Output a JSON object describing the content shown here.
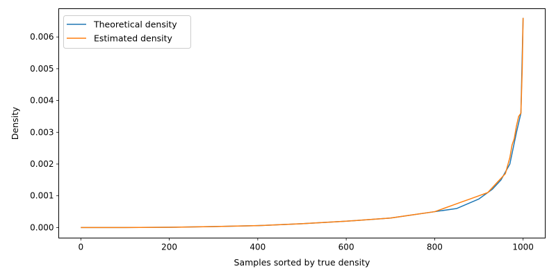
{
  "chart_data": {
    "type": "line",
    "xlabel": "Samples sorted by true density",
    "ylabel": "Density",
    "xlim": [
      -50,
      1050
    ],
    "ylim": [
      -0.00033,
      0.00689
    ],
    "xticks": [
      0,
      200,
      400,
      600,
      800,
      1000
    ],
    "xtick_labels": [
      "0",
      "200",
      "400",
      "600",
      "800",
      "1000"
    ],
    "yticks": [
      0.0,
      0.001,
      0.002,
      0.003,
      0.004,
      0.005,
      0.006
    ],
    "ytick_labels": [
      "0.000",
      "0.001",
      "0.002",
      "0.003",
      "0.004",
      "0.005",
      "0.006"
    ],
    "grid": false,
    "legend_position": "upper-left",
    "series": [
      {
        "name": "Theoretical density",
        "color": "#1f77b4",
        "points": [
          [
            0,
            0.0
          ],
          [
            100,
            2e-06
          ],
          [
            200,
            8e-06
          ],
          [
            300,
            3e-05
          ],
          [
            400,
            6e-05
          ],
          [
            500,
            0.00012
          ],
          [
            600,
            0.0002
          ],
          [
            700,
            0.0003
          ],
          [
            800,
            0.0005
          ],
          [
            850,
            0.0006
          ],
          [
            900,
            0.0009
          ],
          [
            930,
            0.0012
          ],
          [
            950,
            0.0015
          ],
          [
            970,
            0.002
          ],
          [
            985,
            0.003
          ],
          [
            995,
            0.0036
          ],
          [
            1000,
            0.0066
          ]
        ]
      },
      {
        "name": "Estimated density",
        "color": "#ff7f0e",
        "points": [
          [
            0,
            0.0
          ],
          [
            100,
            2e-06
          ],
          [
            200,
            8e-06
          ],
          [
            300,
            3e-05
          ],
          [
            400,
            6e-05
          ],
          [
            500,
            0.00012
          ],
          [
            600,
            0.0002
          ],
          [
            650,
            0.00025
          ],
          [
            700,
            0.0003
          ],
          [
            750,
            0.0004
          ],
          [
            800,
            0.0005
          ],
          [
            820,
            0.0006
          ],
          [
            840,
            0.0007
          ],
          [
            860,
            0.0008
          ],
          [
            880,
            0.0009
          ],
          [
            900,
            0.001
          ],
          [
            920,
            0.0011
          ],
          [
            940,
            0.0014
          ],
          [
            960,
            0.0017
          ],
          [
            970,
            0.0022
          ],
          [
            975,
            0.0026
          ],
          [
            980,
            0.0028
          ],
          [
            985,
            0.0032
          ],
          [
            990,
            0.0035
          ],
          [
            995,
            0.0036
          ],
          [
            998,
            0.005
          ],
          [
            1000,
            0.0066
          ]
        ]
      }
    ]
  }
}
